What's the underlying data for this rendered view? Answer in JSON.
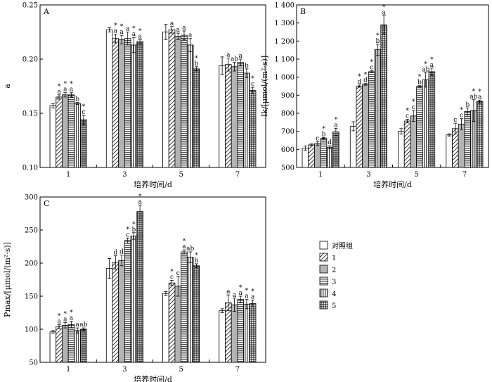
{
  "chart_data": [
    {
      "type": "bar",
      "panel": "A",
      "ylabel": "a",
      "xlabel": "培养时间/d",
      "ylim": [
        0.1,
        0.25
      ],
      "yticks": [
        "0.10",
        "0.15",
        "0.20",
        "0.25"
      ],
      "categories": [
        "1",
        "3",
        "5",
        "7"
      ],
      "series": [
        {
          "name": "对照组",
          "values": [
            0.157,
            0.227,
            0.225,
            0.194
          ],
          "errors": [
            0.002,
            0.002,
            0.007,
            0.008
          ]
        },
        {
          "name": "1",
          "values": [
            0.165,
            0.219,
            0.227,
            0.195
          ],
          "errors": [
            0.002,
            0.004,
            0.003,
            0.006
          ]
        },
        {
          "name": "2",
          "values": [
            0.167,
            0.218,
            0.221,
            0.193
          ],
          "errors": [
            0.002,
            0.004,
            0.003,
            0.004
          ]
        },
        {
          "name": "3",
          "values": [
            0.167,
            0.219,
            0.222,
            0.197
          ],
          "errors": [
            0.002,
            0.006,
            0.004,
            0.003
          ]
        },
        {
          "name": "4",
          "values": [
            0.159,
            0.213,
            0.213,
            0.187
          ],
          "errors": [
            0.001,
            0.007,
            0.006,
            0.004
          ]
        },
        {
          "name": "5",
          "values": [
            0.144,
            0.216,
            0.191,
            0.171
          ],
          "errors": [
            0.004,
            0.002,
            0.002,
            0.003
          ]
        }
      ],
      "annotations": [
        [
          "",
          "",
          "",
          ""
        ],
        [
          "*\na",
          "*\na",
          "a",
          "a"
        ],
        [
          "*\na",
          "*\na",
          "a",
          "ab"
        ],
        [
          "*\na",
          "a",
          "a",
          "a"
        ],
        [
          "b",
          "*\na",
          "a",
          "b"
        ],
        [
          "*\nc",
          "*\na",
          "*\nb",
          "*\nc"
        ]
      ]
    },
    {
      "type": "bar",
      "panel": "B",
      "ylabel": "Ik/[μmol/(m²·s)]",
      "xlabel": "培养时间/d",
      "ylim": [
        500,
        1400
      ],
      "yticks": [
        "500",
        "600",
        "700",
        "800",
        "900",
        "1 000",
        "1 100",
        "1 200",
        "1 300",
        "1 400"
      ],
      "categories": [
        "1",
        "3",
        "5",
        "7"
      ],
      "series": [
        {
          "name": "对照组",
          "values": [
            607,
            728,
            700,
            680
          ],
          "errors": [
            12,
            25,
            15,
            6
          ]
        },
        {
          "name": "1",
          "values": [
            625,
            950,
            757,
            715
          ],
          "errors": [
            5,
            6,
            10,
            30
          ]
        },
        {
          "name": "2",
          "values": [
            632,
            960,
            785,
            740
          ],
          "errors": [
            10,
            5,
            30,
            30
          ]
        },
        {
          "name": "3",
          "values": [
            662,
            1030,
            948,
            810
          ],
          "errors": [
            4,
            5,
            5,
            20
          ]
        },
        {
          "name": "4",
          "values": [
            612,
            1152,
            985,
            815
          ],
          "errors": [
            8,
            30,
            40,
            60
          ]
        },
        {
          "name": "5",
          "values": [
            697,
            1290,
            1030,
            865
          ],
          "errors": [
            20,
            50,
            20,
            8
          ]
        }
      ],
      "annotations": [
        [
          "",
          "",
          "",
          ""
        ],
        [
          "",
          "*\nd",
          "*\nc",
          "c"
        ],
        [
          "c",
          "*\nd",
          "*\nc",
          "*\nc"
        ],
        [
          "*\nb",
          "*\nc",
          "*\nb",
          "b"
        ],
        [
          "d",
          "*\nb",
          "*\nab",
          "*\nab"
        ],
        [
          "*\na",
          "*\na",
          "*\na",
          "*\na"
        ]
      ]
    },
    {
      "type": "bar",
      "panel": "C",
      "ylabel": "Pmax/[μmol/(m²·s)]",
      "xlabel": "培养时间/d",
      "ylim": [
        50,
        300
      ],
      "yticks": [
        "50",
        "100",
        "150",
        "200",
        "250",
        "300"
      ],
      "categories": [
        "1",
        "3",
        "5",
        "7"
      ],
      "series": [
        {
          "name": "对照组",
          "values": [
            96,
            192,
            154,
            128
          ],
          "errors": [
            2,
            15,
            3,
            3
          ]
        },
        {
          "name": "1",
          "values": [
            104,
            201,
            170,
            140
          ],
          "errors": [
            3,
            10,
            4,
            12
          ]
        },
        {
          "name": "2",
          "values": [
            106,
            204,
            165,
            137
          ],
          "errors": [
            4,
            8,
            15,
            10
          ]
        },
        {
          "name": "3",
          "values": [
            107,
            234,
            217,
            145
          ],
          "errors": [
            5,
            4,
            3,
            5
          ]
        },
        {
          "name": "4",
          "values": [
            98,
            241,
            209,
            138
          ],
          "errors": [
            4,
            5,
            8,
            7
          ]
        },
        {
          "name": "5",
          "values": [
            100,
            278,
            196,
            139
          ],
          "errors": [
            2,
            10,
            3,
            5
          ]
        }
      ],
      "annotations": [
        [
          "",
          "",
          "",
          ""
        ],
        [
          "*\na",
          "d",
          "*\nc",
          "a"
        ],
        [
          "*\na",
          "d",
          "c",
          "a"
        ],
        [
          "*\na",
          "*\nc",
          "*\na",
          "*\na"
        ],
        [
          "a",
          "*\nb",
          "ab",
          "*\na"
        ],
        [
          "ab",
          "*\na",
          "*\nb",
          "*\na"
        ]
      ]
    }
  ],
  "legend": {
    "items": [
      "对照组",
      "1",
      "2",
      "3",
      "4",
      "5"
    ]
  }
}
